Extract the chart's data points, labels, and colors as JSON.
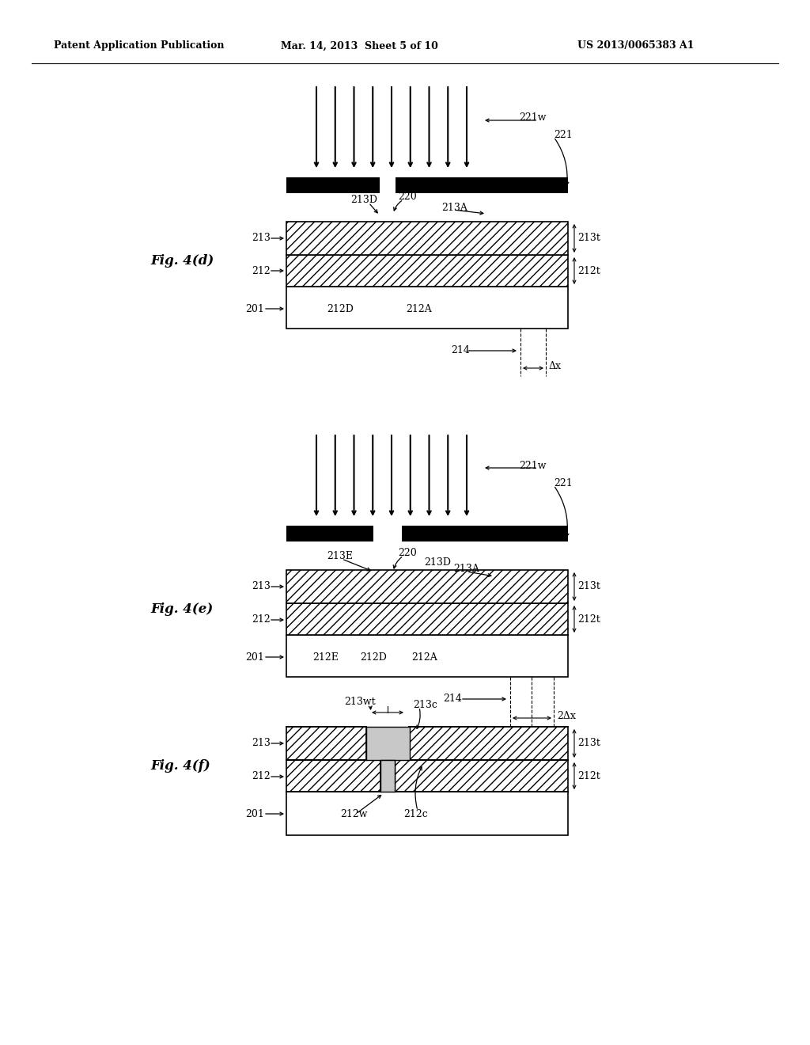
{
  "bg_color": "#ffffff",
  "header_left": "Patent Application Publication",
  "header_mid": "Mar. 14, 2013  Sheet 5 of 10",
  "header_right": "US 2013/0065383 A1",
  "fig_d_label": "Fig. 4(d)",
  "fig_e_label": "Fig. 4(e)",
  "fig_f_label": "Fig. 4(f)",
  "arrow_count": 9
}
